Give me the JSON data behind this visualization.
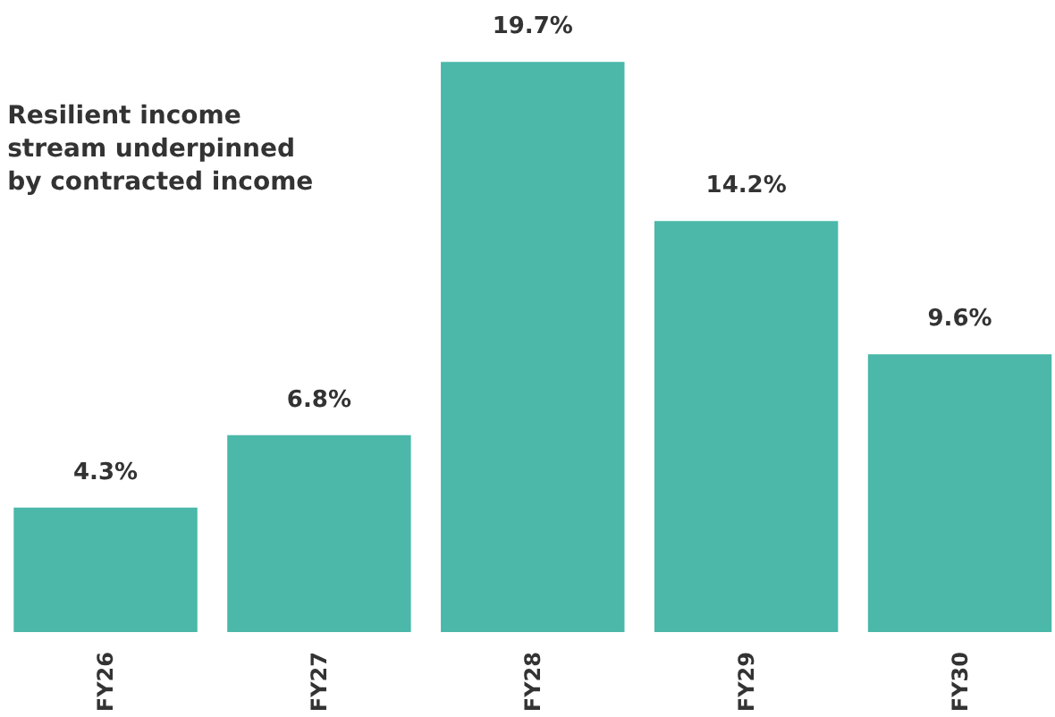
{
  "chart_data": {
    "type": "bar",
    "categories": [
      "FY26",
      "FY27",
      "FY28",
      "FY29",
      "FY30"
    ],
    "values": [
      4.3,
      6.8,
      19.7,
      14.2,
      9.6
    ],
    "color": "#4bb8a9",
    "value_labels": [
      "4.3%",
      "6.8%",
      "19.7%",
      "14.2%",
      "9.6%"
    ],
    "annotations": [
      "Resilient income\nstream underpinned\nby contracted income"
    ]
  }
}
